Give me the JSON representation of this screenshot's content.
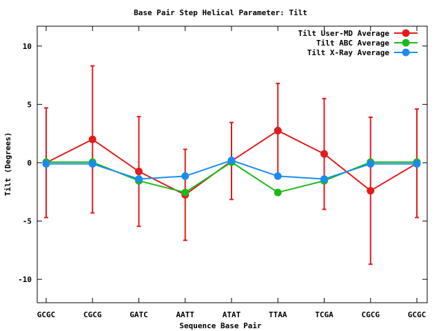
{
  "chart_data": {
    "type": "line",
    "title": "Base Pair Step Helical Parameter: Tilt",
    "xlabel": "Sequence Base Pair",
    "ylabel": "Tilt (Degrees)",
    "categories": [
      "GCGC",
      "CGCG",
      "GATC",
      "AATT",
      "ATAT",
      "TTAA",
      "TCGA",
      "CGCG",
      "GCGC"
    ],
    "ylim": [
      -12,
      11.7
    ],
    "yticks": [
      -10,
      -5,
      0,
      5,
      10
    ],
    "grid": false,
    "legend_position": "top-right",
    "series": [
      {
        "name": "Tilt User-MD Average",
        "color": "#e41a1c",
        "values": [
          0.0,
          2.0,
          -0.75,
          -2.75,
          0.15,
          2.75,
          0.75,
          -2.4,
          -0.05
        ],
        "error": [
          4.7,
          6.3,
          4.7,
          3.9,
          3.3,
          4.05,
          4.75,
          6.3,
          4.65
        ]
      },
      {
        "name": "Tilt ABC Average",
        "color": "#1aba1a",
        "values": [
          0.05,
          0.05,
          -1.55,
          -2.55,
          0.05,
          -2.55,
          -1.55,
          0.05,
          0.05
        ]
      },
      {
        "name": "Tilt X-Ray Average",
        "color": "#1a8cf0",
        "values": [
          -0.1,
          -0.1,
          -1.4,
          -1.15,
          0.2,
          -1.15,
          -1.4,
          -0.1,
          -0.1
        ]
      }
    ]
  }
}
